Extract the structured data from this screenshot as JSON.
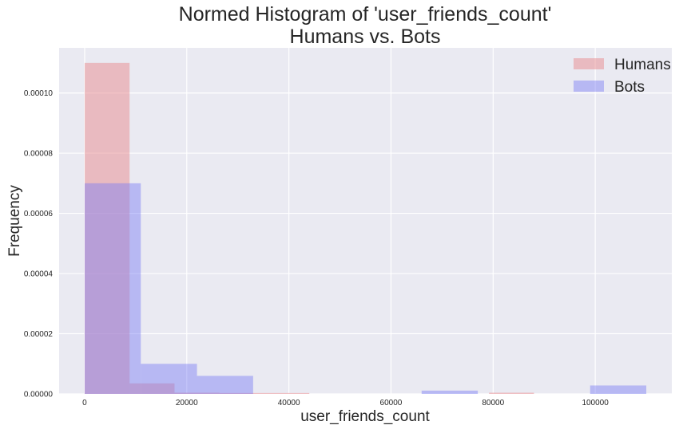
{
  "chart_data": {
    "type": "bar",
    "title": "Normed Histogram of 'user_friends_count'",
    "subtitle": "Humans vs. Bots",
    "xlabel": "user_friends_count",
    "ylabel": "Frequency",
    "xlim": [
      -5000,
      115000
    ],
    "ylim": [
      0,
      0.000115
    ],
    "xticks": [
      0,
      20000,
      40000,
      60000,
      80000,
      100000
    ],
    "yticks": [
      0.0,
      2e-05,
      4e-05,
      6e-05,
      8e-05,
      0.0001
    ],
    "ytick_labels": [
      "0.00000",
      "0.00002",
      "0.00004",
      "0.00006",
      "0.00008",
      "0.00010"
    ],
    "grid": true,
    "legend_position": "top-right",
    "series": [
      {
        "name": "Humans",
        "color": "#e88a8e",
        "opacity": 0.5,
        "bin_edges": [
          0,
          8800,
          17600,
          26400,
          35200,
          44000,
          52800,
          61600,
          70400,
          79200,
          88000
        ],
        "values": [
          0.00011,
          3.5e-06,
          4e-07,
          3e-07,
          3e-07,
          0.0,
          0.0,
          0.0,
          0.0,
          4e-07
        ]
      },
      {
        "name": "Bots",
        "color": "#7b7cf3",
        "opacity": 0.45,
        "bin_edges": [
          0,
          11000,
          22000,
          33000,
          44000,
          55000,
          66000,
          77000,
          88000,
          99000,
          110000
        ],
        "values": [
          7e-05,
          1e-05,
          6e-06,
          0.0,
          0.0,
          0.0,
          1.1e-06,
          0.0,
          0.0,
          2.8e-06
        ]
      }
    ]
  }
}
